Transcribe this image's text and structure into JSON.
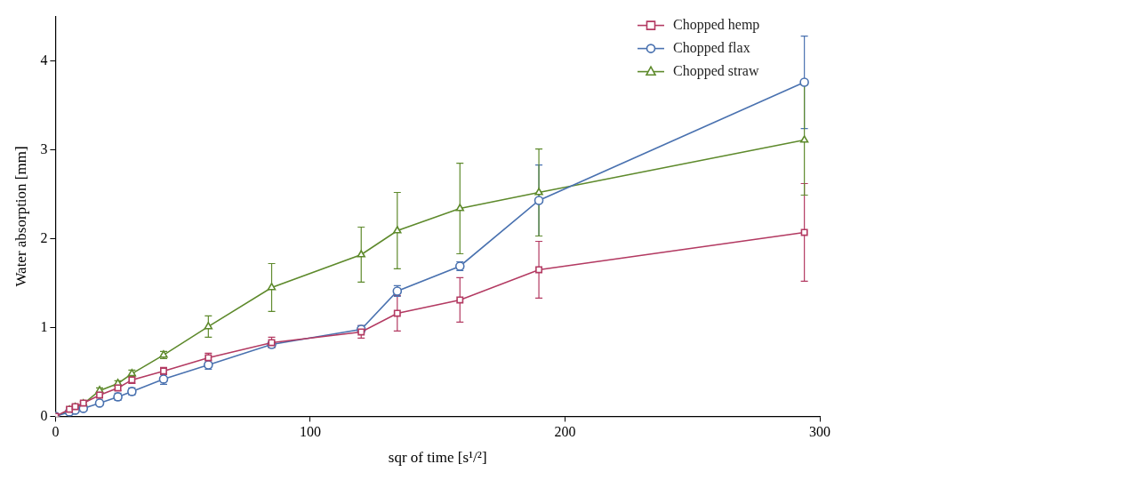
{
  "chart_data": {
    "type": "line",
    "xlabel": "sqr of time [s¹/²]",
    "ylabel": "Water absorption [mm]",
    "x": [
      0,
      5.48,
      7.75,
      10.95,
      17.32,
      24.49,
      30,
      42.43,
      60,
      84.85,
      120,
      134.16,
      158.75,
      189.74,
      293.94
    ],
    "xlim": [
      0,
      300
    ],
    "xticks": [
      0,
      100,
      200,
      300
    ],
    "ylim": [
      0,
      4.5
    ],
    "yticks": [
      0,
      1,
      2,
      3,
      4
    ],
    "grid": false,
    "legend": "top-right",
    "series": [
      {
        "name": "Chopped hemp",
        "color": "#b33a62",
        "marker": "square",
        "line_style": "solid",
        "values": [
          0,
          0.08,
          0.11,
          0.15,
          0.24,
          0.32,
          0.41,
          0.51,
          0.66,
          0.83,
          0.95,
          1.16,
          1.31,
          1.65,
          2.07
        ],
        "errors": [
          0,
          0.02,
          0.02,
          0.02,
          0.03,
          0.03,
          0.04,
          0.04,
          0.05,
          0.06,
          0.07,
          0.2,
          0.25,
          0.32,
          0.55
        ]
      },
      {
        "name": "Chopped flax",
        "color": "#4a72b0",
        "marker": "circle",
        "line_style": "solid",
        "values": [
          0,
          0.05,
          0.07,
          0.09,
          0.15,
          0.22,
          0.28,
          0.42,
          0.58,
          0.81,
          0.98,
          1.41,
          1.69,
          2.43,
          3.76
        ],
        "errors": [
          0,
          0.02,
          0.02,
          0.02,
          0.03,
          0.04,
          0.04,
          0.06,
          0.05,
          0.03,
          0.04,
          0.06,
          0.05,
          0.4,
          0.52
        ]
      },
      {
        "name": "Chopped straw",
        "color": "#5e8a2c",
        "marker": "triangle",
        "line_style": "solid",
        "values": [
          0,
          0.07,
          0.1,
          0.14,
          0.29,
          0.37,
          0.48,
          0.69,
          1.01,
          1.45,
          1.82,
          2.09,
          2.34,
          2.52,
          3.11
        ],
        "errors": [
          0,
          0.02,
          0.02,
          0.02,
          0.03,
          0.03,
          0.04,
          0.04,
          0.12,
          0.27,
          0.31,
          0.43,
          0.51,
          0.49,
          0.62
        ]
      }
    ]
  }
}
